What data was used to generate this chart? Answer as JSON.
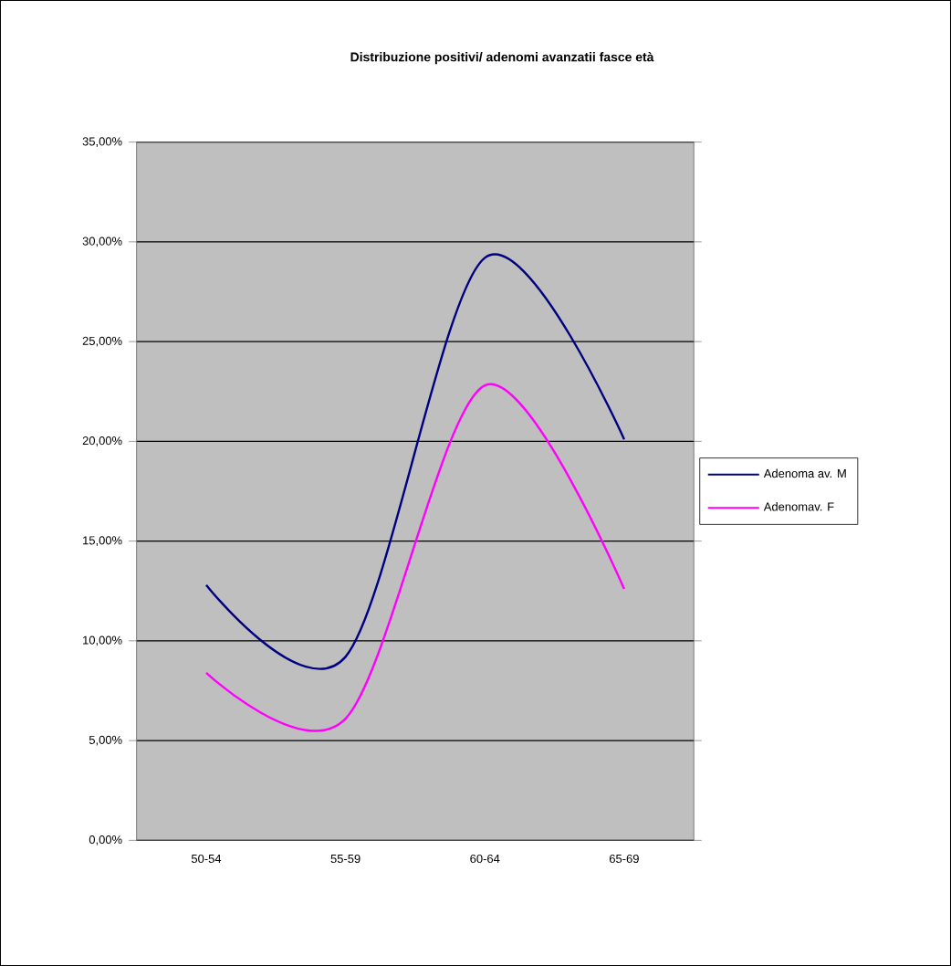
{
  "chart_data": {
    "type": "line",
    "title": "Distribuzione positivi/ adenomi avanzatii fasce età",
    "categories": [
      "50-54",
      "55-59",
      "60-64",
      "65-69"
    ],
    "series": [
      {
        "name": "Adenoma av. M",
        "color": "#000080",
        "values": [
          12.8,
          9.2,
          29.2,
          20.1
        ]
      },
      {
        "name": "Adenomav. F",
        "color": "#ff00ff",
        "values": [
          8.4,
          6.1,
          22.8,
          12.6
        ]
      }
    ],
    "ylim": [
      0,
      35
    ],
    "yticks": [
      {
        "value": 0,
        "label": "0,00%"
      },
      {
        "value": 5,
        "label": "5,00%"
      },
      {
        "value": 10,
        "label": "10,00%"
      },
      {
        "value": 15,
        "label": "15,00%"
      },
      {
        "value": 20,
        "label": "20,00%"
      },
      {
        "value": 25,
        "label": "25,00%"
      },
      {
        "value": 30,
        "label": "30,00%"
      },
      {
        "value": 35,
        "label": "35,00%"
      }
    ],
    "grid": "y",
    "legend": "right",
    "marker": "none",
    "line_style": "solid"
  }
}
